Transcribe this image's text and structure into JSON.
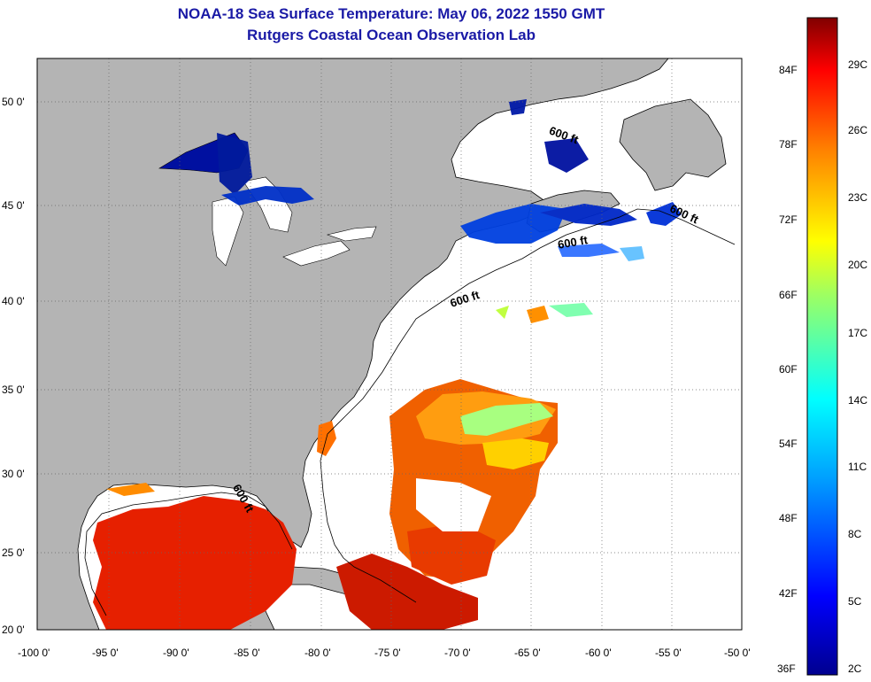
{
  "header": {
    "title": "NOAA-18 Sea Surface Temperature:  May 06, 2022 1550 GMT",
    "subtitle": "Rutgers Coastal Ocean Observation Lab"
  },
  "axes": {
    "lon_labels": [
      "-100 0'",
      "-95 0'",
      "-90 0'",
      "-85 0'",
      "-80 0'",
      "-75 0'",
      "-70 0'",
      "-65 0'",
      "-60 0'",
      "-55 0'",
      "-50 0'"
    ],
    "lat_labels": [
      "20 0'",
      "25 0'",
      "30 0'",
      "35 0'",
      "40 0'",
      "45 0'",
      "50 0'"
    ]
  },
  "isobath_labels": [
    "600 ft",
    "600 ft",
    "600 ft",
    "600 ft",
    "600 ft"
  ],
  "colorbar": {
    "fahrenheit": [
      "84F",
      "78F",
      "72F",
      "66F",
      "60F",
      "54F",
      "48F",
      "42F",
      "36F"
    ],
    "celsius": [
      "29C",
      "26C",
      "23C",
      "20C",
      "17C",
      "14C",
      "11C",
      "8C",
      "5C",
      "2C"
    ]
  },
  "colors": {
    "land": "#b4b4b4",
    "ocean": "#ffffff",
    "title": "#1a1aa6"
  }
}
